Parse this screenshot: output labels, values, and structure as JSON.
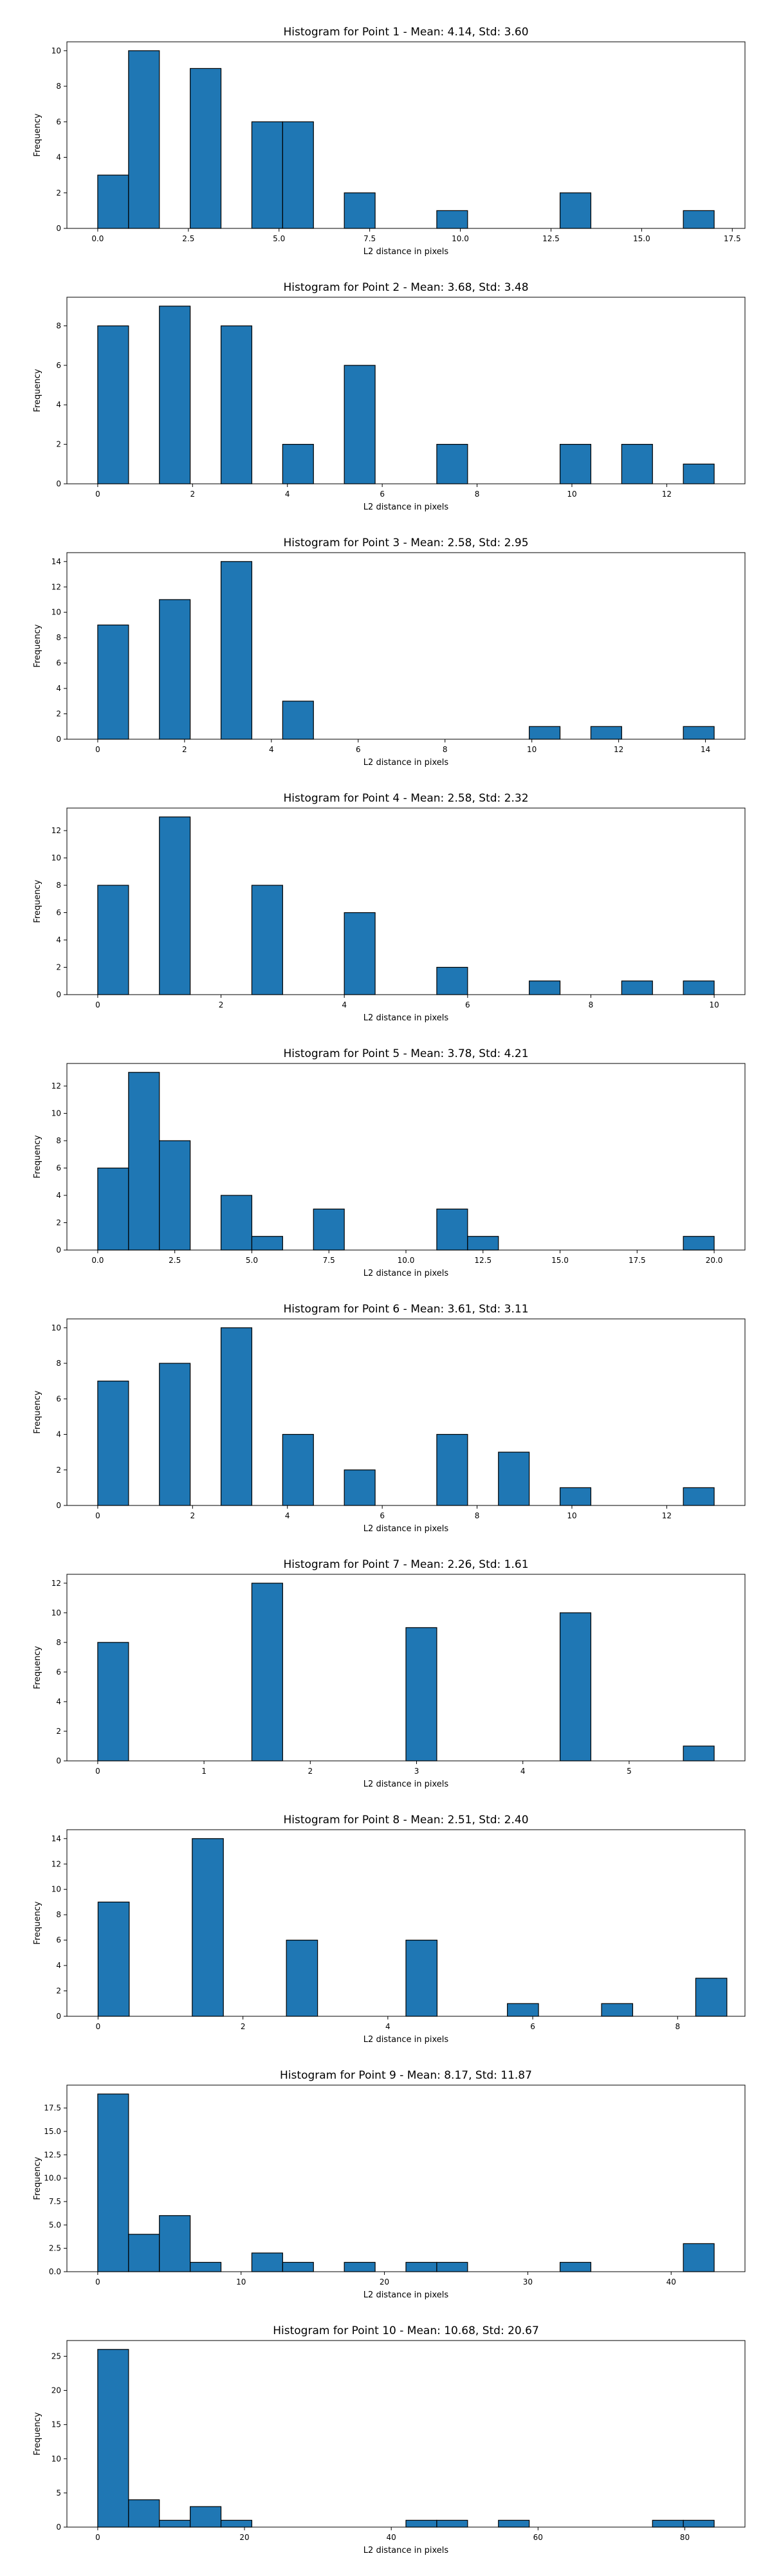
{
  "chart_data": [
    {
      "type": "bar",
      "title": "Histogram for Point 1 - Mean: 4.14, Std: 3.60",
      "xlabel": "L2 distance in pixels",
      "ylabel": "Frequency",
      "xlim": [
        -0.85,
        17.85
      ],
      "ylim": [
        0,
        10.5
      ],
      "xticks": [
        0,
        2.5,
        5,
        7.5,
        10,
        12.5,
        15,
        17.5
      ],
      "xtick_labels": [
        "0.0",
        "2.5",
        "5.0",
        "7.5",
        "10.0",
        "12.5",
        "15.0",
        "17.5"
      ],
      "yticks": [
        0,
        2,
        4,
        6,
        8,
        10
      ],
      "ytick_labels": [
        "0",
        "2",
        "4",
        "6",
        "8",
        "10"
      ],
      "color": "#1f77b4",
      "edgecolor": "#000000",
      "grid": false,
      "bins": [
        {
          "x0": 0.0,
          "x1": 0.85,
          "count": 3
        },
        {
          "x0": 0.85,
          "x1": 1.7,
          "count": 10
        },
        {
          "x0": 2.55,
          "x1": 3.4,
          "count": 9
        },
        {
          "x0": 4.25,
          "x1": 5.1,
          "count": 6
        },
        {
          "x0": 5.1,
          "x1": 5.95,
          "count": 6
        },
        {
          "x0": 6.8,
          "x1": 7.65,
          "count": 2
        },
        {
          "x0": 9.35,
          "x1": 10.2,
          "count": 1
        },
        {
          "x0": 12.75,
          "x1": 13.6,
          "count": 2
        },
        {
          "x0": 16.15,
          "x1": 17.0,
          "count": 1
        }
      ]
    },
    {
      "type": "bar",
      "title": "Histogram for Point 2 - Mean: 3.68, Std: 3.48",
      "xlabel": "L2 distance in pixels",
      "ylabel": "Frequency",
      "xlim": [
        -0.65,
        13.65
      ],
      "ylim": [
        0,
        9.45
      ],
      "xticks": [
        0,
        2,
        4,
        6,
        8,
        10,
        12
      ],
      "xtick_labels": [
        "0",
        "2",
        "4",
        "6",
        "8",
        "10",
        "12"
      ],
      "yticks": [
        0,
        2,
        4,
        6,
        8
      ],
      "ytick_labels": [
        "0",
        "2",
        "4",
        "6",
        "8"
      ],
      "color": "#1f77b4",
      "edgecolor": "#000000",
      "grid": false,
      "bins": [
        {
          "x0": 0.0,
          "x1": 0.65,
          "count": 8
        },
        {
          "x0": 1.3,
          "x1": 1.95,
          "count": 9
        },
        {
          "x0": 2.6,
          "x1": 3.25,
          "count": 8
        },
        {
          "x0": 3.9,
          "x1": 4.55,
          "count": 2
        },
        {
          "x0": 5.2,
          "x1": 5.85,
          "count": 6
        },
        {
          "x0": 7.15,
          "x1": 7.8,
          "count": 2
        },
        {
          "x0": 9.75,
          "x1": 10.4,
          "count": 2
        },
        {
          "x0": 11.05,
          "x1": 11.7,
          "count": 2
        },
        {
          "x0": 12.35,
          "x1": 13.0,
          "count": 1
        }
      ]
    },
    {
      "type": "bar",
      "title": "Histogram for Point 3 - Mean: 2.58, Std: 2.95",
      "xlabel": "L2 distance in pixels",
      "ylabel": "Frequency",
      "xlim": [
        -0.71,
        14.91
      ],
      "ylim": [
        0,
        14.7
      ],
      "xticks": [
        0,
        2,
        4,
        6,
        8,
        10,
        12,
        14
      ],
      "xtick_labels": [
        "0",
        "2",
        "4",
        "6",
        "8",
        "10",
        "12",
        "14"
      ],
      "yticks": [
        0,
        2,
        4,
        6,
        8,
        10,
        12,
        14
      ],
      "ytick_labels": [
        "0",
        "2",
        "4",
        "6",
        "8",
        "10",
        "12",
        "14"
      ],
      "color": "#1f77b4",
      "edgecolor": "#000000",
      "grid": false,
      "bins": [
        {
          "x0": 0.0,
          "x1": 0.71,
          "count": 9
        },
        {
          "x0": 1.42,
          "x1": 2.13,
          "count": 11
        },
        {
          "x0": 2.84,
          "x1": 3.55,
          "count": 14
        },
        {
          "x0": 4.26,
          "x1": 4.97,
          "count": 3
        },
        {
          "x0": 9.94,
          "x1": 10.65,
          "count": 1
        },
        {
          "x0": 11.36,
          "x1": 12.07,
          "count": 1
        },
        {
          "x0": 13.49,
          "x1": 14.2,
          "count": 1
        }
      ]
    },
    {
      "type": "bar",
      "title": "Histogram for Point 4 - Mean: 2.58, Std: 2.32",
      "xlabel": "L2 distance in pixels",
      "ylabel": "Frequency",
      "xlim": [
        -0.5,
        10.5
      ],
      "ylim": [
        0,
        13.65
      ],
      "xticks": [
        0,
        2,
        4,
        6,
        8,
        10
      ],
      "xtick_labels": [
        "0",
        "2",
        "4",
        "6",
        "8",
        "10"
      ],
      "yticks": [
        0,
        2,
        4,
        6,
        8,
        10,
        12
      ],
      "ytick_labels": [
        "0",
        "2",
        "4",
        "6",
        "8",
        "10",
        "12"
      ],
      "color": "#1f77b4",
      "edgecolor": "#000000",
      "grid": false,
      "bins": [
        {
          "x0": 0.0,
          "x1": 0.5,
          "count": 8
        },
        {
          "x0": 1.0,
          "x1": 1.5,
          "count": 13
        },
        {
          "x0": 2.5,
          "x1": 3.0,
          "count": 8
        },
        {
          "x0": 4.0,
          "x1": 4.5,
          "count": 6
        },
        {
          "x0": 5.5,
          "x1": 6.0,
          "count": 2
        },
        {
          "x0": 7.0,
          "x1": 7.5,
          "count": 1
        },
        {
          "x0": 8.5,
          "x1": 9.0,
          "count": 1
        },
        {
          "x0": 9.5,
          "x1": 10.0,
          "count": 1
        }
      ]
    },
    {
      "type": "bar",
      "title": "Histogram for Point 5 - Mean: 3.78, Std: 4.21",
      "xlabel": "L2 distance in pixels",
      "ylabel": "Frequency",
      "xlim": [
        -1.0,
        21.0
      ],
      "ylim": [
        0,
        13.65
      ],
      "xticks": [
        0,
        2.5,
        5,
        7.5,
        10,
        12.5,
        15,
        17.5,
        20
      ],
      "xtick_labels": [
        "0.0",
        "2.5",
        "5.0",
        "7.5",
        "10.0",
        "12.5",
        "15.0",
        "17.5",
        "20.0"
      ],
      "yticks": [
        0,
        2,
        4,
        6,
        8,
        10,
        12
      ],
      "ytick_labels": [
        "0",
        "2",
        "4",
        "6",
        "8",
        "10",
        "12"
      ],
      "color": "#1f77b4",
      "edgecolor": "#000000",
      "grid": false,
      "bins": [
        {
          "x0": 0.0,
          "x1": 1.0,
          "count": 6
        },
        {
          "x0": 1.0,
          "x1": 2.0,
          "count": 13
        },
        {
          "x0": 2.0,
          "x1": 3.0,
          "count": 8
        },
        {
          "x0": 4.0,
          "x1": 5.0,
          "count": 4
        },
        {
          "x0": 5.0,
          "x1": 6.0,
          "count": 1
        },
        {
          "x0": 7.0,
          "x1": 8.0,
          "count": 3
        },
        {
          "x0": 11.0,
          "x1": 12.0,
          "count": 3
        },
        {
          "x0": 12.0,
          "x1": 13.0,
          "count": 1
        },
        {
          "x0": 19.0,
          "x1": 20.0,
          "count": 1
        }
      ]
    },
    {
      "type": "bar",
      "title": "Histogram for Point 6 - Mean: 3.61, Std: 3.11",
      "xlabel": "L2 distance in pixels",
      "ylabel": "Frequency",
      "xlim": [
        -0.65,
        13.65
      ],
      "ylim": [
        0,
        10.5
      ],
      "xticks": [
        0,
        2,
        4,
        6,
        8,
        10,
        12
      ],
      "xtick_labels": [
        "0",
        "2",
        "4",
        "6",
        "8",
        "10",
        "12"
      ],
      "yticks": [
        0,
        2,
        4,
        6,
        8,
        10
      ],
      "ytick_labels": [
        "0",
        "2",
        "4",
        "6",
        "8",
        "10"
      ],
      "color": "#1f77b4",
      "edgecolor": "#000000",
      "grid": false,
      "bins": [
        {
          "x0": 0.0,
          "x1": 0.65,
          "count": 7
        },
        {
          "x0": 1.3,
          "x1": 1.95,
          "count": 8
        },
        {
          "x0": 2.6,
          "x1": 3.25,
          "count": 10
        },
        {
          "x0": 3.9,
          "x1": 4.55,
          "count": 4
        },
        {
          "x0": 5.2,
          "x1": 5.85,
          "count": 2
        },
        {
          "x0": 7.15,
          "x1": 7.8,
          "count": 4
        },
        {
          "x0": 8.45,
          "x1": 9.1,
          "count": 3
        },
        {
          "x0": 9.75,
          "x1": 10.4,
          "count": 1
        },
        {
          "x0": 12.35,
          "x1": 13.0,
          "count": 1
        }
      ]
    },
    {
      "type": "bar",
      "title": "Histogram for Point 7 - Mean: 2.26, Std: 1.61",
      "xlabel": "L2 distance in pixels",
      "ylabel": "Frequency",
      "xlim": [
        -0.29,
        6.09
      ],
      "ylim": [
        0,
        12.6
      ],
      "xticks": [
        0,
        1,
        2,
        3,
        4,
        5
      ],
      "xtick_labels": [
        "0",
        "1",
        "2",
        "3",
        "4",
        "5"
      ],
      "yticks": [
        0,
        2,
        4,
        6,
        8,
        10,
        12
      ],
      "ytick_labels": [
        "0",
        "2",
        "4",
        "6",
        "8",
        "10",
        "12"
      ],
      "color": "#1f77b4",
      "edgecolor": "#000000",
      "grid": false,
      "bins": [
        {
          "x0": 0.0,
          "x1": 0.29,
          "count": 8
        },
        {
          "x0": 1.45,
          "x1": 1.74,
          "count": 12
        },
        {
          "x0": 2.9,
          "x1": 3.19,
          "count": 9
        },
        {
          "x0": 4.35,
          "x1": 4.64,
          "count": 10
        },
        {
          "x0": 5.51,
          "x1": 5.8,
          "count": 1
        }
      ]
    },
    {
      "type": "bar",
      "title": "Histogram for Point 8 - Mean: 2.51, Std: 2.40",
      "xlabel": "L2 distance in pixels",
      "ylabel": "Frequency",
      "xlim": [
        -0.43,
        8.93
      ],
      "ylim": [
        0,
        14.7
      ],
      "xticks": [
        0,
        2,
        4,
        6,
        8
      ],
      "xtick_labels": [
        "0",
        "2",
        "4",
        "6",
        "8"
      ],
      "yticks": [
        0,
        2,
        4,
        6,
        8,
        10,
        12,
        14
      ],
      "ytick_labels": [
        "0",
        "2",
        "4",
        "6",
        "8",
        "10",
        "12",
        "14"
      ],
      "color": "#1f77b4",
      "edgecolor": "#000000",
      "grid": false,
      "bins": [
        {
          "x0": 0.0,
          "x1": 0.43,
          "count": 9
        },
        {
          "x0": 1.3,
          "x1": 1.73,
          "count": 14
        },
        {
          "x0": 2.6,
          "x1": 3.03,
          "count": 6
        },
        {
          "x0": 4.25,
          "x1": 4.68,
          "count": 6
        },
        {
          "x0": 5.65,
          "x1": 6.08,
          "count": 1
        },
        {
          "x0": 6.95,
          "x1": 7.38,
          "count": 1
        },
        {
          "x0": 8.25,
          "x1": 8.68,
          "count": 3
        }
      ]
    },
    {
      "type": "bar",
      "title": "Histogram for Point 9 - Mean: 8.17, Std: 11.87",
      "xlabel": "L2 distance in pixels",
      "ylabel": "Frequency",
      "xlim": [
        -2.15,
        45.15
      ],
      "ylim": [
        0,
        19.95
      ],
      "xticks": [
        0,
        10,
        20,
        30,
        40
      ],
      "xtick_labels": [
        "0",
        "10",
        "20",
        "30",
        "40"
      ],
      "yticks": [
        0,
        2.5,
        5,
        7.5,
        10,
        12.5,
        15,
        17.5
      ],
      "ytick_labels": [
        "0.0",
        "2.5",
        "5.0",
        "7.5",
        "10.0",
        "12.5",
        "15.0",
        "17.5"
      ],
      "color": "#1f77b4",
      "edgecolor": "#000000",
      "grid": false,
      "bins": [
        {
          "x0": 0.0,
          "x1": 2.15,
          "count": 19
        },
        {
          "x0": 2.15,
          "x1": 4.3,
          "count": 4
        },
        {
          "x0": 4.3,
          "x1": 6.45,
          "count": 6
        },
        {
          "x0": 6.45,
          "x1": 8.6,
          "count": 1
        },
        {
          "x0": 10.75,
          "x1": 12.9,
          "count": 2
        },
        {
          "x0": 12.9,
          "x1": 15.05,
          "count": 1
        },
        {
          "x0": 17.2,
          "x1": 19.35,
          "count": 1
        },
        {
          "x0": 21.5,
          "x1": 23.65,
          "count": 1
        },
        {
          "x0": 23.65,
          "x1": 25.8,
          "count": 1
        },
        {
          "x0": 32.25,
          "x1": 34.4,
          "count": 1
        },
        {
          "x0": 40.85,
          "x1": 43.0,
          "count": 3
        }
      ]
    },
    {
      "type": "bar",
      "title": "Histogram for Point 10 - Mean: 10.68, Std: 20.67",
      "xlabel": "L2 distance in pixels",
      "ylabel": "Frequency",
      "xlim": [
        -4.2,
        88.2
      ],
      "ylim": [
        0,
        27.3
      ],
      "xticks": [
        0,
        20,
        40,
        60,
        80
      ],
      "xtick_labels": [
        "0",
        "20",
        "40",
        "60",
        "80"
      ],
      "yticks": [
        0,
        5,
        10,
        15,
        20,
        25
      ],
      "ytick_labels": [
        "0",
        "5",
        "10",
        "15",
        "20",
        "25"
      ],
      "color": "#1f77b4",
      "edgecolor": "#000000",
      "grid": false,
      "bins": [
        {
          "x0": 0.0,
          "x1": 4.2,
          "count": 26
        },
        {
          "x0": 4.2,
          "x1": 8.4,
          "count": 4
        },
        {
          "x0": 8.4,
          "x1": 12.6,
          "count": 1
        },
        {
          "x0": 12.6,
          "x1": 16.8,
          "count": 3
        },
        {
          "x0": 16.8,
          "x1": 21.0,
          "count": 1
        },
        {
          "x0": 42.0,
          "x1": 46.2,
          "count": 1
        },
        {
          "x0": 46.2,
          "x1": 50.4,
          "count": 1
        },
        {
          "x0": 54.6,
          "x1": 58.8,
          "count": 1
        },
        {
          "x0": 75.6,
          "x1": 79.8,
          "count": 1
        },
        {
          "x0": 79.8,
          "x1": 84.0,
          "count": 1
        }
      ]
    }
  ]
}
